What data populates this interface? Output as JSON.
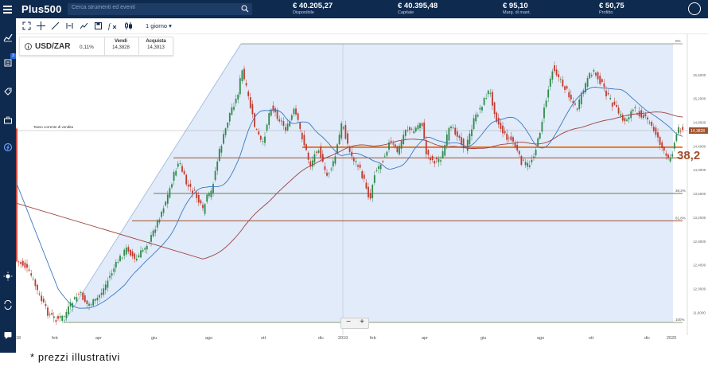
{
  "header": {
    "logo": "Plus500",
    "search_placeholder": "Cerca strumenti ed eventi",
    "kpis": [
      {
        "value": "€ 40.205,27",
        "label": "Disponibile"
      },
      {
        "value": "€ 40.395,48",
        "label": "Capitale"
      },
      {
        "value": "€ 95,10",
        "label": "Marg. di mant."
      },
      {
        "value": "€ 50,75",
        "label": "Profitto"
      }
    ]
  },
  "sidebar": {
    "badge": "3"
  },
  "toolbar": {
    "timeframe": "1 giorno ▾"
  },
  "instrument": {
    "symbol": "USD/ZAR",
    "change": "0,11%",
    "sell_label": "Vendi",
    "sell_price": "14,3828",
    "buy_label": "Acquista",
    "buy_price": "14,3913"
  },
  "chart_data": {
    "type": "line",
    "description_label": "Tasso corrente di vendita",
    "current_price_label": "14,3828",
    "fib_levels": [
      {
        "label": "0%",
        "value": 16.12
      },
      {
        "label": "",
        "value": 14.38
      },
      {
        "label": "",
        "value": 14.2
      },
      {
        "label": "38,2%",
        "value": 13.6
      },
      {
        "label": "61,8%",
        "value": 13.14
      },
      {
        "label": "100%",
        "value": 11.43
      }
    ],
    "fib_highlight": "38,2",
    "y_ticks": [
      "15,6000",
      "15,2000",
      "14,8000",
      "14,4000",
      "14,0000",
      "13,6000",
      "13,2000",
      "12,8000",
      "12,4000",
      "12,0000",
      "11,6000"
    ],
    "x_ticks": [
      "18",
      "feb",
      "apr",
      "giu",
      "ago",
      "ott",
      "dic",
      "2019",
      "feb",
      "apr",
      "giu",
      "ago",
      "ott",
      "dic",
      "2020"
    ],
    "ylim": [
      11.3,
      16.3
    ]
  },
  "zoom": {
    "minus": "−",
    "plus": "+"
  },
  "footnote": "* prezzi illustrativi"
}
